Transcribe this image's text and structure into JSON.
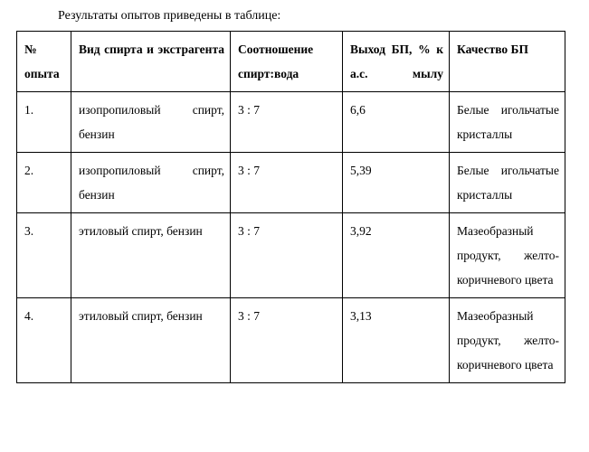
{
  "caption": "Результаты опытов приведены в таблице:",
  "columns": {
    "c1": "№ опыта",
    "c2": "Вид спирта и экстрагента",
    "c3": "Соотношение спирт:вода",
    "c4": "Выход БП, % к а.с. мылу",
    "c5": "Качество БП"
  },
  "rows": [
    {
      "n": "1.",
      "solvent": "изопропиловый спирт, бензин",
      "ratio": "3 : 7",
      "yield": "6,6",
      "quality": "Белые игольчатые кристаллы"
    },
    {
      "n": "2.",
      "solvent": "изопропиловый спирт, бензин",
      "ratio": "3 : 7",
      "yield": "5,39",
      "quality": "Белые игольчатые кристаллы"
    },
    {
      "n": "3.",
      "solvent": "этиловый спирт, бензин",
      "ratio": "3 : 7",
      "yield": "3,92",
      "quality": "Мазеобразный продукт, желто-коричневого цвета"
    },
    {
      "n": "4.",
      "solvent": "этиловый спирт, бензин",
      "ratio": "3 : 7",
      "yield": "3,13",
      "quality": "Мазеобразный продукт, желто-коричневого цвета"
    }
  ]
}
